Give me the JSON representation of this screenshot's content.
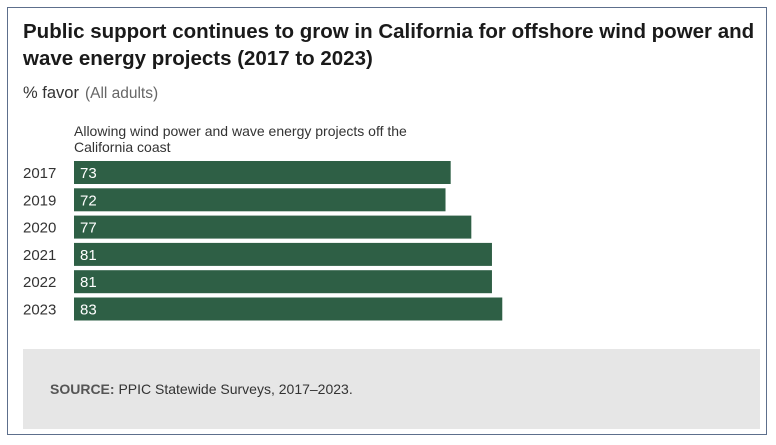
{
  "title": "Public support continues to grow in California for offshore wind power and wave energy projects (2017 to 2023)",
  "subtitle": "% favor",
  "subtitle_note": "(All adults)",
  "colors": {
    "bar": "#2e5f45",
    "bar_label": "#ffffff",
    "border": "#5d6f8c",
    "footer_bg": "#e6e6e6"
  },
  "chart_data": {
    "type": "bar",
    "orientation": "horizontal",
    "title": "Allowing wind power and wave energy projects off the California coast",
    "categories": [
      "2017",
      "2019",
      "2020",
      "2021",
      "2022",
      "2023"
    ],
    "values": [
      73,
      72,
      77,
      81,
      81,
      83
    ],
    "xlim": [
      0,
      100
    ],
    "grid": false,
    "data_labels": true
  },
  "footer": {
    "source_label": "SOURCE:",
    "source_text": "PPIC Statewide Surveys, 2017–2023."
  }
}
